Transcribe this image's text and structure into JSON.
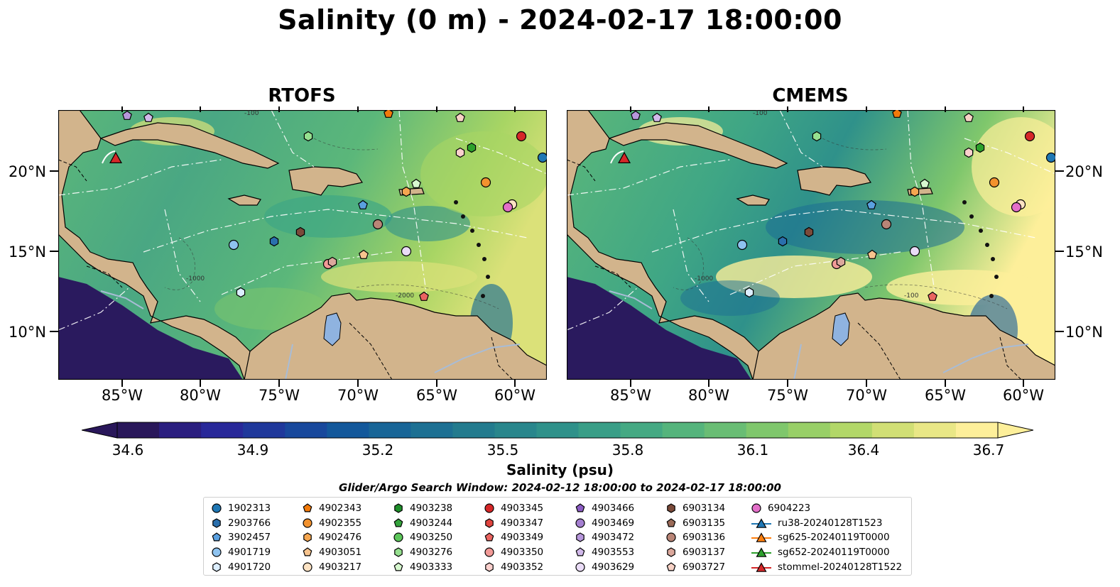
{
  "title": "Salinity (0 m) - 2024-02-17 18:00:00",
  "panels": [
    {
      "title": "RTOFS"
    },
    {
      "title": "CMEMS"
    }
  ],
  "lat_ticks": [
    "20°N",
    "15°N",
    "10°N"
  ],
  "lon_ticks": [
    "85°W",
    "80°W",
    "75°W",
    "70°W",
    "65°W",
    "60°W"
  ],
  "bathymetry_labels": [
    "-100",
    "-1000",
    "-1000",
    "-2000",
    "-100"
  ],
  "colorbar": {
    "label": "Salinity (psu)",
    "min": 34.6,
    "max": 36.7,
    "ticks": [
      "34.6",
      "34.9",
      "35.2",
      "35.5",
      "35.8",
      "36.1",
      "36.4",
      "36.7"
    ],
    "colormap": [
      "#29175a",
      "#2b2398",
      "#1c3d9c",
      "#13589b",
      "#1b6d94",
      "#257e8d",
      "#2f918a",
      "#3fa685",
      "#5bb77a",
      "#7fc76c",
      "#a8d564",
      "#dbe179",
      "#fdef9a"
    ],
    "extend": "both"
  },
  "colors": {
    "land": "#d2b48c",
    "deep_sea": "#2a1a5e",
    "lake": "#8fb3e0",
    "river": "#a8bcd6"
  },
  "search_window": "Glider/Argo Search Window: 2024-02-12 18:00:00 to 2024-02-17 18:00:00",
  "legend": {
    "columns": [
      [
        {
          "label": "1902313",
          "marker": "circle",
          "color": "#1f77b4"
        },
        {
          "label": "2903766",
          "marker": "hexagon",
          "color": "#2a6fad"
        },
        {
          "label": "3902457",
          "marker": "pentagon",
          "color": "#5aa0e0"
        },
        {
          "label": "4901719",
          "marker": "circle",
          "color": "#8ec3f0"
        },
        {
          "label": "4901720",
          "marker": "hexagon",
          "color": "#dceeff"
        }
      ],
      [
        {
          "label": "4902343",
          "marker": "pentagon",
          "color": "#f27a0a"
        },
        {
          "label": "4902355",
          "marker": "circle",
          "color": "#f2922e"
        },
        {
          "label": "4902476",
          "marker": "hexagon",
          "color": "#f5a650"
        },
        {
          "label": "4903051",
          "marker": "pentagon",
          "color": "#f7c48e"
        },
        {
          "label": "4903217",
          "marker": "circle",
          "color": "#fde3c4"
        }
      ],
      [
        {
          "label": "4903238",
          "marker": "hexagon",
          "color": "#1e8f2a"
        },
        {
          "label": "4903244",
          "marker": "pentagon",
          "color": "#34a33c"
        },
        {
          "label": "4903250",
          "marker": "circle",
          "color": "#5cc65a"
        },
        {
          "label": "4903276",
          "marker": "hexagon",
          "color": "#96e08f"
        },
        {
          "label": "4903333",
          "marker": "pentagon",
          "color": "#d7f8cf"
        }
      ],
      [
        {
          "label": "4903345",
          "marker": "circle",
          "color": "#d62728"
        },
        {
          "label": "4903347",
          "marker": "hexagon",
          "color": "#e0443e"
        },
        {
          "label": "4903349",
          "marker": "pentagon",
          "color": "#ea6460"
        },
        {
          "label": "4903350",
          "marker": "circle",
          "color": "#f29a97"
        },
        {
          "label": "4903352",
          "marker": "hexagon",
          "color": "#fbd0cd"
        }
      ],
      [
        {
          "label": "4903466",
          "marker": "pentagon",
          "color": "#8c5cc4"
        },
        {
          "label": "4903469",
          "marker": "circle",
          "color": "#a47fd0"
        },
        {
          "label": "4903472",
          "marker": "hexagon",
          "color": "#b797dc"
        },
        {
          "label": "4903553",
          "marker": "pentagon",
          "color": "#d1b9ea"
        },
        {
          "label": "4903629",
          "marker": "circle",
          "color": "#eadcf7"
        }
      ],
      [
        {
          "label": "6903134",
          "marker": "hexagon",
          "color": "#7b4a3a"
        },
        {
          "label": "6903135",
          "marker": "pentagon",
          "color": "#9a6a58"
        },
        {
          "label": "6903136",
          "marker": "circle",
          "color": "#b98577"
        },
        {
          "label": "6903137",
          "marker": "hexagon",
          "color": "#dba89c"
        },
        {
          "label": "6903727",
          "marker": "pentagon",
          "color": "#f7d2c6"
        }
      ],
      [
        {
          "label": "6904223",
          "marker": "circle",
          "color": "#e36fc9"
        },
        {
          "label": "ru38-20240128T1523",
          "marker": "triangle-line",
          "color": "#1f77b4"
        },
        {
          "label": "sg625-20240119T0000",
          "marker": "triangle-line",
          "color": "#ff7f0e"
        },
        {
          "label": "sg652-20240119T0000",
          "marker": "triangle-line",
          "color": "#2ca02c"
        },
        {
          "label": "stommel-20240128T1522",
          "marker": "triangle-line",
          "color": "#d62728"
        }
      ]
    ]
  }
}
